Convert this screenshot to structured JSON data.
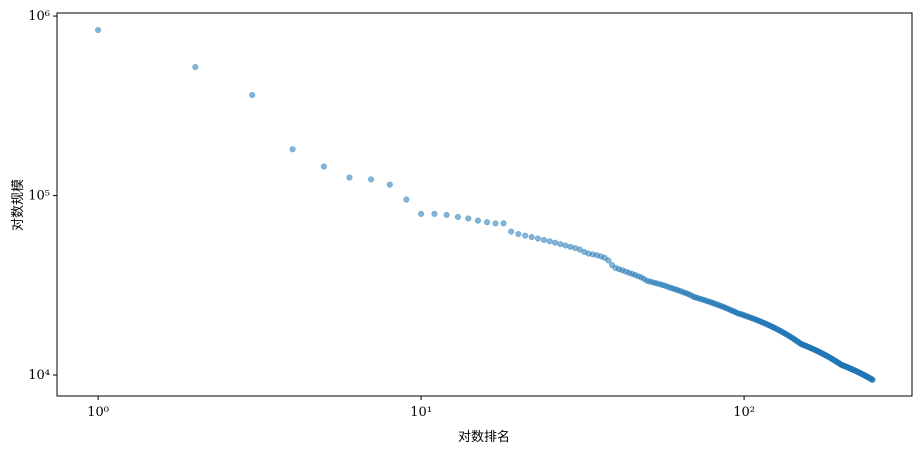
{
  "chart_data": {
    "type": "scatter",
    "xlabel": "对数排名",
    "ylabel": "对数规模",
    "xscale": "log",
    "yscale": "log",
    "color": "#1f77b4",
    "xlim": [
      0.746,
      331
    ],
    "ylim": [
      7640,
      1040000
    ],
    "xticks": [
      {
        "value": 1,
        "label": "10⁰"
      },
      {
        "value": 10,
        "label": "10¹"
      },
      {
        "value": 100,
        "label": "10²"
      }
    ],
    "yticks": [
      {
        "value": 10000,
        "label": "10⁴"
      },
      {
        "value": 100000,
        "label": "10⁵"
      },
      {
        "value": 1000000,
        "label": "10⁶"
      }
    ],
    "x": [
      1,
      2,
      3,
      4,
      5,
      6,
      7,
      8,
      9,
      10,
      11,
      12,
      13,
      14,
      15,
      16,
      17,
      18,
      19,
      20,
      21,
      22,
      23,
      24,
      25,
      26,
      27,
      28,
      29,
      30,
      31,
      32,
      33,
      34,
      35,
      36,
      37,
      38,
      39,
      40,
      41,
      42,
      43,
      44,
      45,
      46,
      47,
      48,
      49,
      50,
      51,
      52,
      53,
      54,
      55,
      56,
      57,
      58,
      59,
      60,
      61,
      62,
      63,
      64,
      65,
      66,
      67,
      68,
      69,
      70,
      71,
      72,
      73,
      74,
      75,
      76,
      77,
      78,
      79,
      80,
      81,
      82,
      83,
      84,
      85,
      86,
      87,
      88,
      89,
      90,
      91,
      92,
      93,
      94,
      95,
      96,
      97,
      98,
      99,
      100,
      101,
      102,
      103,
      104,
      105,
      106,
      107,
      108,
      109,
      110,
      111,
      112,
      113,
      114,
      115,
      116,
      117,
      118,
      119,
      120,
      121,
      122,
      123,
      124,
      125,
      126,
      127,
      128,
      129,
      130,
      131,
      132,
      133,
      134,
      135,
      136,
      137,
      138,
      139,
      140,
      141,
      142,
      143,
      144,
      145,
      146,
      147,
      148,
      149,
      150,
      151,
      152,
      153,
      154,
      155,
      156,
      157,
      158,
      159,
      160,
      161,
      162,
      163,
      164,
      165,
      166,
      167,
      168,
      169,
      170,
      171,
      172,
      173,
      174,
      175,
      176,
      177,
      178,
      179,
      180,
      181,
      182,
      183,
      184,
      185,
      186,
      187,
      188,
      189,
      190,
      191,
      192,
      193,
      194,
      195,
      196,
      197,
      198,
      199,
      200,
      201,
      202,
      203,
      204,
      205,
      206,
      207,
      208,
      209,
      210,
      211,
      212,
      213,
      214,
      215,
      216,
      217,
      218,
      219,
      220,
      221,
      222,
      223,
      224,
      225,
      226,
      227,
      228,
      229,
      230,
      231,
      232,
      233,
      234,
      235,
      236,
      237,
      238,
      239,
      240,
      241,
      242,
      243,
      244,
      245,
      246,
      247,
      248,
      249,
      250
    ],
    "values": [
      836000,
      520000,
      363000,
      181000,
      145000,
      126000,
      123000,
      115000,
      95000,
      79000,
      79000,
      78000,
      76000,
      74500,
      72500,
      71000,
      70000,
      70000,
      63000,
      61000,
      59800,
      58700,
      57600,
      56600,
      55600,
      54600,
      53600,
      52700,
      51800,
      51000,
      50000,
      48500,
      47500,
      47000,
      46500,
      45800,
      45000,
      43500,
      41000,
      39500,
      38900,
      38300,
      37700,
      37100,
      36600,
      36100,
      35500,
      35000,
      34300,
      33500,
      33200,
      32900,
      32600,
      32300,
      32000,
      31700,
      31400,
      31000,
      30700,
      30400,
      30100,
      29800,
      29500,
      29200,
      28900,
      28600,
      28300,
      28000,
      27600,
      27200,
      27000,
      26800,
      26600,
      26400,
      26200,
      26000,
      25800,
      25600,
      25400,
      25200,
      25000,
      24800,
      24600,
      24400,
      24200,
      24000,
      23800,
      23600,
      23400,
      23200,
      23000,
      22800,
      22600,
      22400,
      22200,
      22000,
      21900,
      21800,
      21700,
      21500,
      21370,
      21240,
      21100,
      20970,
      20840,
      20710,
      20580,
      20440,
      20310,
      20180,
      20050,
      19920,
      19780,
      19650,
      19520,
      19390,
      19260,
      19120,
      18990,
      18860,
      18730,
      18600,
      18460,
      18330,
      18200,
      18070,
      17940,
      17800,
      17670,
      17540,
      17410,
      17280,
      17140,
      17010,
      16880,
      16750,
      16620,
      16480,
      16350,
      16220,
      16090,
      15960,
      15820,
      15690,
      15560,
      15430,
      15300,
      15160,
      15030,
      14900,
      14830,
      14760,
      14690,
      14620,
      14550,
      14480,
      14410,
      14340,
      14270,
      14200,
      14130,
      14060,
      13990,
      13920,
      13850,
      13780,
      13710,
      13640,
      13570,
      13500,
      13430,
      13360,
      13290,
      13220,
      13150,
      13080,
      13010,
      12940,
      12870,
      12800,
      12730,
      12660,
      12590,
      12520,
      12450,
      12380,
      12310,
      12240,
      12170,
      12100,
      12030,
      11960,
      11890,
      11820,
      11750,
      11680,
      11610,
      11540,
      11470,
      11400,
      11360,
      11320,
      11280,
      11240,
      11200,
      11160,
      11120,
      11080,
      11040,
      11000,
      10960,
      10920,
      10880,
      10840,
      10800,
      10760,
      10720,
      10680,
      10640,
      10600,
      10560,
      10520,
      10480,
      10440,
      10400,
      10360,
      10320,
      10280,
      10240,
      10200,
      10160,
      10120,
      10080,
      10040,
      10000,
      9960,
      9920,
      9880,
      9840,
      9800,
      9760,
      9720,
      9680,
      9640,
      9600,
      9560,
      9520,
      9480,
      9440,
      9400
    ]
  }
}
